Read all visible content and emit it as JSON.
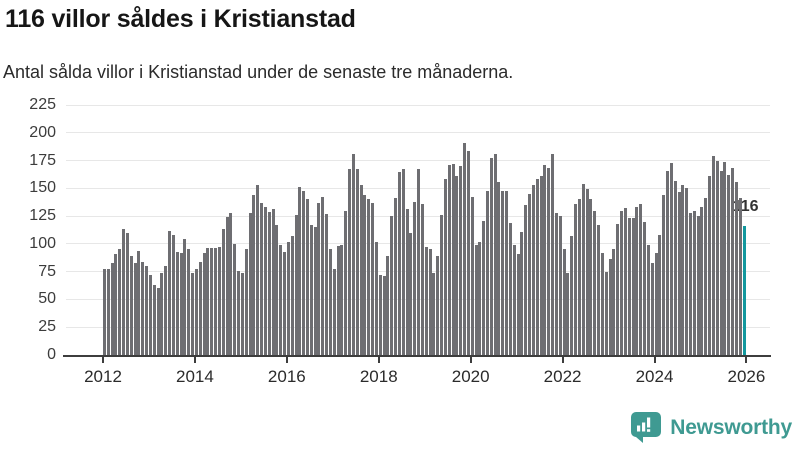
{
  "header": {
    "title": "116 villor såldes i Kristianstad",
    "subtitle": "Antal sålda villor i Kristianstad under de senaste tre månaderna."
  },
  "chart_data": {
    "type": "bar",
    "title": "116 villor såldes i Kristianstad",
    "subtitle": "Antal sålda villor i Kristianstad under de senaste tre månaderna.",
    "x_start_month": "2012-01",
    "x_end_month": "2025-12",
    "x_tick_labels": [
      "2012",
      "2014",
      "2016",
      "2018",
      "2020",
      "2022",
      "2024",
      "2026"
    ],
    "y_ticks": [
      0,
      25,
      50,
      75,
      100,
      125,
      150,
      175,
      200,
      225
    ],
    "ylim": [
      0,
      225
    ],
    "grid": "horizontal",
    "values": [
      77,
      77,
      83,
      91,
      95,
      113,
      110,
      89,
      83,
      94,
      84,
      80,
      72,
      63,
      60,
      74,
      80,
      112,
      108,
      93,
      92,
      104,
      95,
      74,
      77,
      84,
      92,
      96,
      96,
      96,
      97,
      113,
      124,
      128,
      100,
      76,
      74,
      95,
      128,
      144,
      153,
      137,
      133,
      129,
      131,
      117,
      99,
      93,
      102,
      107,
      126,
      151,
      148,
      140,
      117,
      115,
      137,
      142,
      127,
      95,
      77,
      98,
      99,
      130,
      167,
      181,
      167,
      153,
      144,
      140,
      137,
      102,
      72,
      71,
      89,
      125,
      141,
      165,
      167,
      131,
      110,
      138,
      167,
      136,
      97,
      95,
      74,
      89,
      126,
      158,
      171,
      172,
      161,
      170,
      191,
      184,
      142,
      99,
      102,
      121,
      148,
      177,
      181,
      156,
      148,
      148,
      119,
      99,
      91,
      111,
      135,
      145,
      153,
      158,
      161,
      171,
      168,
      181,
      128,
      125,
      95,
      74,
      107,
      136,
      140,
      154,
      149,
      140,
      130,
      117,
      92,
      75,
      86,
      95,
      118,
      130,
      132,
      123,
      123,
      133,
      136,
      120,
      99,
      83,
      92,
      108,
      144,
      166,
      173,
      157,
      147,
      153,
      150,
      128,
      130,
      125,
      133,
      141,
      161,
      179,
      175,
      166,
      174,
      162,
      168,
      156,
      141,
      116
    ],
    "highlight": {
      "index": 167,
      "value": 116,
      "label": "116",
      "color": "#12989E"
    },
    "colors": {
      "bar": "#6E6E72",
      "highlight": "#12989E",
      "gridline": "#E7E7E7",
      "axis": "#3D3D3D"
    }
  },
  "footer": {
    "brand": "Newsworthy",
    "brand_color": "#3F9A92"
  }
}
